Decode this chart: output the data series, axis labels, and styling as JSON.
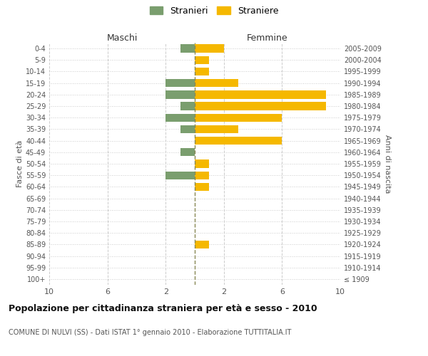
{
  "age_groups": [
    "100+",
    "95-99",
    "90-94",
    "85-89",
    "80-84",
    "75-79",
    "70-74",
    "65-69",
    "60-64",
    "55-59",
    "50-54",
    "45-49",
    "40-44",
    "35-39",
    "30-34",
    "25-29",
    "20-24",
    "15-19",
    "10-14",
    "5-9",
    "0-4"
  ],
  "birth_years": [
    "≤ 1909",
    "1910-1914",
    "1915-1919",
    "1920-1924",
    "1925-1929",
    "1930-1934",
    "1935-1939",
    "1940-1944",
    "1945-1949",
    "1950-1954",
    "1955-1959",
    "1960-1964",
    "1965-1969",
    "1970-1974",
    "1975-1979",
    "1980-1984",
    "1985-1989",
    "1990-1994",
    "1995-1999",
    "2000-2004",
    "2005-2009"
  ],
  "maschi_stranieri": [
    0,
    0,
    0,
    0,
    0,
    0,
    0,
    0,
    0,
    2,
    0,
    1,
    0,
    1,
    2,
    1,
    2,
    2,
    0,
    0,
    1
  ],
  "femmine_straniere": [
    0,
    0,
    0,
    1,
    0,
    0,
    0,
    0,
    1,
    1,
    1,
    0,
    6,
    3,
    6,
    9,
    9,
    3,
    1,
    1,
    2
  ],
  "color_maschi": "#7a9e6e",
  "color_femmine": "#f5b800",
  "title": "Popolazione per cittadinanza straniera per età e sesso - 2010",
  "subtitle": "COMUNE DI NULVI (SS) - Dati ISTAT 1° gennaio 2010 - Elaborazione TUTTITALIA.IT",
  "xlabel_left": "Maschi",
  "xlabel_right": "Femmine",
  "ylabel_left": "Fasce di età",
  "ylabel_right": "Anni di nascita",
  "legend_stranieri": "Stranieri",
  "legend_straniere": "Straniere",
  "xlim": 10,
  "background_color": "#ffffff",
  "grid_color": "#cccccc"
}
